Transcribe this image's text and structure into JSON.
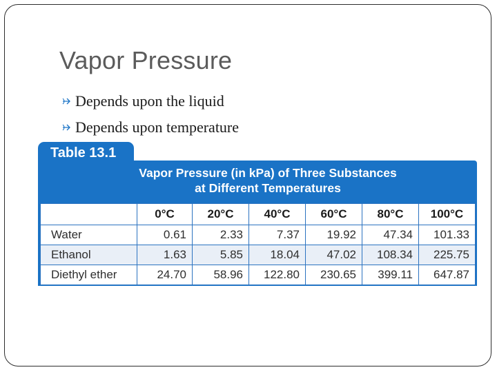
{
  "slide": {
    "title": "Vapor Pressure",
    "bullets": [
      "Depends upon the liquid",
      "Depends upon temperature"
    ]
  },
  "table": {
    "label": "Table 13.1",
    "caption_line1": "Vapor Pressure (in kPa) of Three Substances",
    "caption_line2": "at Different Temperatures",
    "headers": [
      "0°C",
      "20°C",
      "40°C",
      "60°C",
      "80°C",
      "100°C"
    ],
    "rows": [
      {
        "substance": "Water",
        "values": [
          "0.61",
          "2.33",
          "7.37",
          "19.92",
          "47.34",
          "101.33"
        ]
      },
      {
        "substance": "Ethanol",
        "values": [
          "1.63",
          "5.85",
          "18.04",
          "47.02",
          "108.34",
          "225.75"
        ]
      },
      {
        "substance": "Diethyl ether",
        "values": [
          "24.70",
          "58.96",
          "122.80",
          "230.65",
          "399.11",
          "647.87"
        ]
      }
    ],
    "colors": {
      "header_blue": "#1a73c6",
      "cell_border": "#2a72c0"
    }
  }
}
